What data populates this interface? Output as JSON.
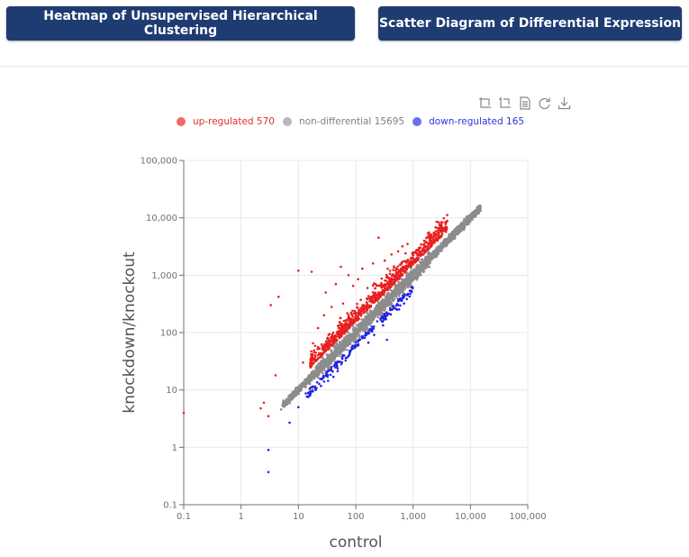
{
  "header": {
    "heatmap_button": "Heatmap of Unsupervised Hierarchical Clustering",
    "scatter_button": "Scatter Diagram of Differential Expression"
  },
  "toolbar": {
    "icons": [
      "zoom-in-icon",
      "zoom-reset-icon",
      "data-view-icon",
      "restore-icon",
      "download-icon"
    ]
  },
  "legend": [
    {
      "label": "up-regulated 570",
      "color": "#f06a6a",
      "text_color": "#e03030"
    },
    {
      "label": "non-differential 15695",
      "color": "#b8b8b8",
      "text_color": "#808080"
    },
    {
      "label": "down-regulated 165",
      "color": "#6b6ff0",
      "text_color": "#2f35d8"
    }
  ],
  "chart_data": {
    "type": "scatter",
    "xlabel": "control",
    "ylabel": "knockdown/knockout",
    "xscale": "log",
    "yscale": "log",
    "xlim": [
      0.1,
      100000
    ],
    "ylim": [
      0.1,
      100000
    ],
    "xticks": [
      "0.1",
      "1",
      "10",
      "100",
      "1,000",
      "10,000",
      "100,000"
    ],
    "yticks": [
      "0.1",
      "1",
      "10",
      "100",
      "1,000",
      "10,000",
      "100,000"
    ],
    "grid": true,
    "legend_position": "top-left",
    "series": [
      {
        "name": "up-regulated",
        "count": 570,
        "color": "#e82020",
        "points": [
          [
            0.1,
            4
          ],
          [
            2.2,
            4.8
          ],
          [
            2.5,
            6
          ],
          [
            3,
            3.5
          ],
          [
            3.3,
            300
          ],
          [
            4,
            18
          ],
          [
            4.5,
            420
          ],
          [
            10,
            1200
          ],
          [
            12,
            30
          ],
          [
            17,
            1150
          ],
          [
            18,
            65
          ],
          [
            22,
            120
          ],
          [
            28,
            200
          ],
          [
            30,
            500
          ],
          [
            38,
            280
          ],
          [
            45,
            700
          ],
          [
            55,
            1400
          ],
          [
            60,
            320
          ],
          [
            75,
            1000
          ],
          [
            90,
            650
          ],
          [
            110,
            850
          ],
          [
            130,
            1300
          ],
          [
            160,
            600
          ],
          [
            200,
            1600
          ],
          [
            250,
            4500
          ],
          [
            320,
            1800
          ],
          [
            360,
            1300
          ],
          [
            420,
            2300
          ],
          [
            550,
            2600
          ],
          [
            650,
            3200
          ],
          [
            800,
            3500
          ],
          [
            1000,
            2500
          ]
        ]
      },
      {
        "name": "non-differential",
        "count": 15695,
        "color": "#8c8c8c",
        "x_range": [
          5,
          15000
        ]
      },
      {
        "name": "down-regulated",
        "count": 165,
        "color": "#2424e0",
        "points": [
          [
            3,
            0.9
          ],
          [
            3,
            0.37
          ],
          [
            7,
            2.7
          ],
          [
            10,
            5
          ],
          [
            16,
            8
          ],
          [
            20,
            10
          ],
          [
            28,
            14
          ],
          [
            35,
            22
          ],
          [
            45,
            30
          ],
          [
            60,
            40
          ],
          [
            85,
            55
          ],
          [
            110,
            70
          ],
          [
            150,
            100
          ],
          [
            200,
            120
          ],
          [
            300,
            180
          ],
          [
            350,
            75
          ],
          [
            420,
            250
          ],
          [
            550,
            380
          ],
          [
            700,
            420
          ],
          [
            800,
            450
          ]
        ]
      }
    ]
  }
}
